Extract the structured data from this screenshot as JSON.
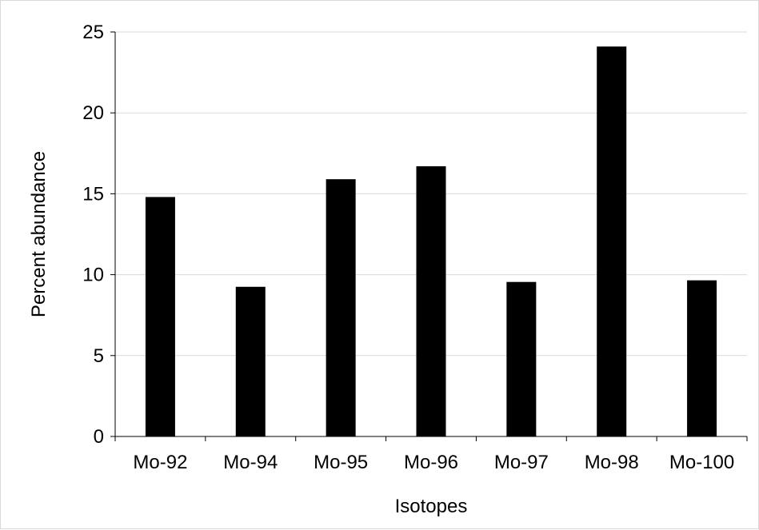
{
  "chart_data": {
    "type": "bar",
    "title": "",
    "xlabel": "Isotopes",
    "ylabel": "Percent abundance",
    "categories": [
      "Mo-92",
      "Mo-94",
      "Mo-95",
      "Mo-96",
      "Mo-97",
      "Mo-98",
      "Mo-100"
    ],
    "values": [
      14.8,
      9.25,
      15.9,
      16.7,
      9.55,
      24.1,
      9.65
    ],
    "ylim": [
      0,
      25
    ],
    "yticks": [
      0,
      5,
      10,
      15,
      20,
      25
    ],
    "grid": "horizontal",
    "legend": "none",
    "colors": {
      "bar": "#000000",
      "grid": "#d9d9d9",
      "axis": "#000000",
      "frame": "#d9d9d9"
    }
  }
}
